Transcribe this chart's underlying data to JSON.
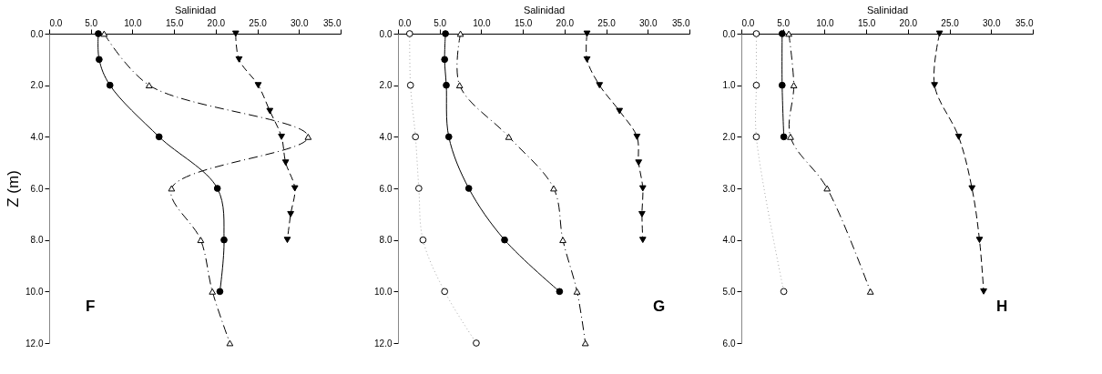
{
  "chart_data": [
    {
      "type": "line",
      "xlabel": "Salinidad",
      "ylabel": "Z (m)",
      "annotations": [
        "F"
      ],
      "xlim": [
        0,
        35
      ],
      "xticks": [
        {
          "value": 0,
          "label": "0.0"
        },
        {
          "value": 5,
          "label": "5.0"
        },
        {
          "value": 10,
          "label": "10.0"
        },
        {
          "value": 15,
          "label": "15.0"
        },
        {
          "value": 20,
          "label": "20.0"
        },
        {
          "value": 25,
          "label": "25.0"
        },
        {
          "value": 30,
          "label": "30.0"
        },
        {
          "value": 35,
          "label": "35.0"
        }
      ],
      "ylim": [
        12,
        0
      ],
      "yticks": [
        {
          "value": 0,
          "label": "0.0"
        },
        {
          "value": 2,
          "label": "2.0"
        },
        {
          "value": 4,
          "label": "4.0"
        },
        {
          "value": 6,
          "label": "6.0"
        },
        {
          "value": 8,
          "label": "8.0"
        },
        {
          "value": 10,
          "label": "10.0"
        },
        {
          "value": 12,
          "label": "12.0"
        }
      ],
      "grid": false,
      "series": [
        {
          "color": "#000000",
          "marker": "circle",
          "line_style": "solid",
          "x": [
            5.9,
            6.0,
            7.3,
            13.2,
            20.2,
            21.0,
            20.5
          ],
          "values": [
            0,
            1,
            2,
            4,
            6,
            8,
            10
          ]
        },
        {
          "color": "#ffffff",
          "marker": "triangle",
          "line_style": "dashdot",
          "x": [
            6.6,
            12.0,
            31.1,
            14.7,
            18.2,
            19.6,
            21.7
          ],
          "values": [
            0,
            2,
            4,
            6,
            8,
            10,
            12
          ]
        },
        {
          "color": "#000000",
          "marker": "triangle-down",
          "line_style": "dashed",
          "x": [
            22.4,
            22.8,
            25.1,
            26.5,
            27.9,
            28.4,
            29.5,
            29.0,
            28.6
          ],
          "values": [
            0,
            1,
            2,
            3,
            4,
            5,
            6,
            7,
            8
          ]
        }
      ]
    },
    {
      "type": "line",
      "xlabel": "Salinidad",
      "annotations": [
        "G"
      ],
      "xlim": [
        0,
        35
      ],
      "xticks": [
        {
          "value": 0,
          "label": "0.0"
        },
        {
          "value": 5,
          "label": "5.0"
        },
        {
          "value": 10,
          "label": "10.0"
        },
        {
          "value": 15,
          "label": "15.0"
        },
        {
          "value": 20,
          "label": "20.0"
        },
        {
          "value": 25,
          "label": "25.0"
        },
        {
          "value": 30,
          "label": "30.0"
        },
        {
          "value": 35,
          "label": "35.0"
        }
      ],
      "ylim": [
        12,
        0
      ],
      "yticks": [
        {
          "value": 0,
          "label": "0.0"
        },
        {
          "value": 2,
          "label": "2.0"
        },
        {
          "value": 4,
          "label": "4.0"
        },
        {
          "value": 6,
          "label": "6.0"
        },
        {
          "value": 8,
          "label": "8.0"
        },
        {
          "value": 10,
          "label": "10.0"
        },
        {
          "value": 12,
          "label": "12.0"
        }
      ],
      "grid": false,
      "series": [
        {
          "color": "#ffffff",
          "marker": "circle",
          "line_style": "dotted",
          "x": [
            1.4,
            1.5,
            2.1,
            2.5,
            3.0,
            5.6,
            9.4
          ],
          "values": [
            0,
            2,
            4,
            6,
            8,
            10,
            12
          ]
        },
        {
          "color": "#000000",
          "marker": "circle",
          "line_style": "solid",
          "x": [
            5.7,
            5.6,
            5.8,
            6.1,
            8.5,
            12.8,
            19.4
          ],
          "values": [
            0,
            1,
            2,
            4,
            6,
            8,
            10
          ]
        },
        {
          "color": "#ffffff",
          "marker": "triangle",
          "line_style": "dashdot",
          "x": [
            7.5,
            7.4,
            13.3,
            18.7,
            19.8,
            21.5,
            22.5
          ],
          "values": [
            0,
            2,
            4,
            6,
            8,
            10,
            12
          ]
        },
        {
          "color": "#000000",
          "marker": "triangle-down",
          "line_style": "dashed",
          "x": [
            22.7,
            22.7,
            24.2,
            26.6,
            28.7,
            28.9,
            29.4,
            29.3,
            29.4
          ],
          "values": [
            0,
            1,
            2,
            3,
            4,
            5,
            6,
            7,
            8
          ]
        }
      ]
    },
    {
      "type": "line",
      "xlabel": "Salinidad",
      "annotations": [
        "H"
      ],
      "xlim": [
        0,
        35
      ],
      "xticks": [
        {
          "value": 0,
          "label": "0.0"
        },
        {
          "value": 5,
          "label": "5.0"
        },
        {
          "value": 10,
          "label": "10.0"
        },
        {
          "value": 15,
          "label": "15.0"
        },
        {
          "value": 20,
          "label": "20.0"
        },
        {
          "value": 25,
          "label": "25.0"
        },
        {
          "value": 30,
          "label": "30.0"
        },
        {
          "value": 35,
          "label": "35.0"
        }
      ],
      "ylim": [
        6,
        0
      ],
      "yticks": [
        {
          "value": 0,
          "label": "0.0"
        },
        {
          "value": 1,
          "label": "1.0"
        },
        {
          "value": 2,
          "label": "2.0"
        },
        {
          "value": 3,
          "label": "3.0"
        },
        {
          "value": 4,
          "label": "4.0"
        },
        {
          "value": 5,
          "label": "5.0"
        },
        {
          "value": 6,
          "label": "6.0"
        }
      ],
      "grid": false,
      "series": [
        {
          "color": "#ffffff",
          "marker": "circle",
          "line_style": "dotted",
          "x": [
            1.8,
            1.8,
            1.8,
            5.1
          ],
          "values": [
            0,
            1,
            2,
            5
          ]
        },
        {
          "color": "#000000",
          "marker": "circle",
          "line_style": "solid",
          "x": [
            4.9,
            4.9,
            5.1
          ],
          "values": [
            0,
            1,
            2
          ]
        },
        {
          "color": "#ffffff",
          "marker": "triangle",
          "line_style": "dashdot",
          "x": [
            5.7,
            6.3,
            5.9,
            10.3,
            15.5
          ],
          "values": [
            0,
            1,
            2,
            3,
            5
          ]
        },
        {
          "color": "#000000",
          "marker": "triangle-down",
          "line_style": "dashed",
          "x": [
            23.8,
            23.2,
            26.1,
            27.7,
            28.6,
            29.1
          ],
          "values": [
            0,
            1,
            2,
            3,
            4,
            5
          ]
        }
      ]
    }
  ]
}
